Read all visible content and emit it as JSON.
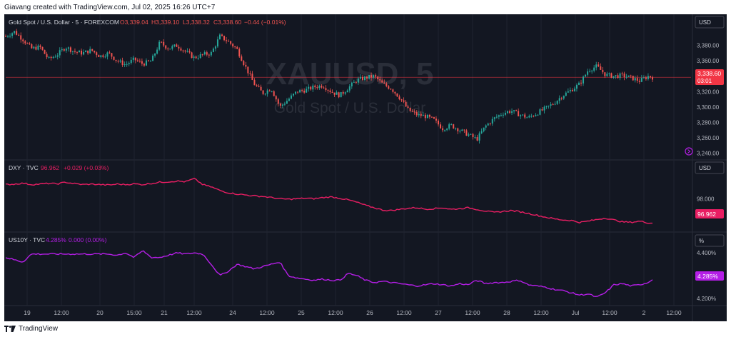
{
  "header": {
    "caption": "Giavang created with TradingView.com, Jul 02, 2025 16:26 UTC+7"
  },
  "footer": {
    "brand": "TradingView"
  },
  "colors": {
    "background": "#131722",
    "grid": "#1f2330",
    "text": "#b2b5be",
    "gold_up": "#26a69a",
    "gold_down": "#ef5350",
    "dxy": "#e91e63",
    "us10y": "#b41ee6",
    "price_badge": "#f23645"
  },
  "chart_data": [
    {
      "type": "candlestick",
      "legend": {
        "symbol": "Gold Spot / U.S. Dollar · 5 · FOREXCOM",
        "o": "O3,339.04",
        "h": "H3,339.10",
        "l": "L3,338.32",
        "c": "C3,338.60",
        "chg": "−0.44 (−0.01%)"
      },
      "watermark": {
        "ticker": "XAUUSD, 5",
        "name": "Gold Spot / U.S. Dollar"
      },
      "currency_button": "USD",
      "y_ticks": [
        "3,380.00",
        "3,360.00",
        "3,340.00",
        "3,320.00",
        "3,300.00",
        "3,280.00",
        "3,260.00",
        "3,240.00"
      ],
      "y_tick_values": [
        3380,
        3360,
        3340,
        3320,
        3300,
        3280,
        3260,
        3240
      ],
      "ylim": [
        3233,
        3402
      ],
      "last_price": "3,338.60",
      "countdown": "03:01",
      "last_value": 3338.6,
      "series": {
        "name": "XAUUSD",
        "points": [
          [
            0,
            3392
          ],
          [
            2,
            3398
          ],
          [
            4,
            3388
          ],
          [
            6,
            3376
          ],
          [
            8,
            3378
          ],
          [
            10,
            3362
          ],
          [
            12,
            3368
          ],
          [
            14,
            3378
          ],
          [
            16,
            3372
          ],
          [
            18,
            3370
          ],
          [
            20,
            3374
          ],
          [
            22,
            3366
          ],
          [
            24,
            3370
          ],
          [
            26,
            3360
          ],
          [
            28,
            3355
          ],
          [
            30,
            3362
          ],
          [
            32,
            3356
          ],
          [
            34,
            3360
          ],
          [
            36,
            3384
          ],
          [
            38,
            3376
          ],
          [
            40,
            3380
          ],
          [
            42,
            3372
          ],
          [
            44,
            3364
          ],
          [
            46,
            3368
          ],
          [
            48,
            3370
          ],
          [
            50,
            3392
          ],
          [
            52,
            3385
          ],
          [
            54,
            3375
          ],
          [
            56,
            3352
          ],
          [
            58,
            3330
          ],
          [
            60,
            3318
          ],
          [
            62,
            3324
          ],
          [
            64,
            3300
          ],
          [
            66,
            3310
          ],
          [
            68,
            3320
          ],
          [
            70,
            3322
          ],
          [
            72,
            3326
          ],
          [
            74,
            3328
          ],
          [
            76,
            3320
          ],
          [
            78,
            3315
          ],
          [
            80,
            3325
          ],
          [
            82,
            3335
          ],
          [
            84,
            3338
          ],
          [
            86,
            3340
          ],
          [
            88,
            3330
          ],
          [
            90,
            3324
          ],
          [
            92,
            3312
          ],
          [
            94,
            3296
          ],
          [
            96,
            3290
          ],
          [
            98,
            3288
          ],
          [
            100,
            3283
          ],
          [
            102,
            3272
          ],
          [
            104,
            3276
          ],
          [
            106,
            3270
          ],
          [
            108,
            3264
          ],
          [
            110,
            3258
          ],
          [
            112,
            3275
          ],
          [
            114,
            3285
          ],
          [
            116,
            3292
          ],
          [
            118,
            3295
          ],
          [
            120,
            3290
          ],
          [
            122,
            3286
          ],
          [
            124,
            3292
          ],
          [
            126,
            3298
          ],
          [
            128,
            3305
          ],
          [
            130,
            3315
          ],
          [
            132,
            3322
          ],
          [
            134,
            3330
          ],
          [
            136,
            3348
          ],
          [
            138,
            3353
          ],
          [
            140,
            3342
          ],
          [
            142,
            3340
          ],
          [
            144,
            3341
          ],
          [
            146,
            3338
          ],
          [
            148,
            3334
          ],
          [
            150,
            3340
          ],
          [
            151,
            3338.6
          ]
        ]
      }
    },
    {
      "type": "line",
      "legend": {
        "symbol": "DXY · TVC",
        "value": "96.962",
        "chg": "+0.029 (+0.03%)"
      },
      "currency_button": "USD",
      "y_ticks": [
        "98.000"
      ],
      "y_tick_values": [
        98.0
      ],
      "ylim": [
        96.8,
        99.1
      ],
      "last_value_label": "96.962",
      "last_value": 96.962,
      "series": {
        "name": "DXY",
        "points": [
          [
            0,
            98.6
          ],
          [
            2,
            98.62
          ],
          [
            4,
            98.66
          ],
          [
            6,
            98.6
          ],
          [
            8,
            98.62
          ],
          [
            10,
            98.65
          ],
          [
            12,
            98.63
          ],
          [
            14,
            98.7
          ],
          [
            16,
            98.64
          ],
          [
            18,
            98.6
          ],
          [
            20,
            98.62
          ],
          [
            22,
            98.6
          ],
          [
            24,
            98.58
          ],
          [
            26,
            98.62
          ],
          [
            28,
            98.6
          ],
          [
            30,
            98.63
          ],
          [
            32,
            98.6
          ],
          [
            34,
            98.65
          ],
          [
            36,
            98.7
          ],
          [
            38,
            98.72
          ],
          [
            40,
            98.75
          ],
          [
            42,
            98.72
          ],
          [
            44,
            98.85
          ],
          [
            46,
            98.6
          ],
          [
            48,
            98.5
          ],
          [
            50,
            98.35
          ],
          [
            52,
            98.25
          ],
          [
            54,
            98.2
          ],
          [
            56,
            98.16
          ],
          [
            58,
            98.12
          ],
          [
            60,
            98.1
          ],
          [
            62,
            98.05
          ],
          [
            64,
            98.0
          ],
          [
            66,
            97.98
          ],
          [
            68,
            98.0
          ],
          [
            70,
            98.02
          ],
          [
            72,
            98.0
          ],
          [
            74,
            98.05
          ],
          [
            76,
            98.08
          ],
          [
            78,
            98.02
          ],
          [
            80,
            97.95
          ],
          [
            82,
            97.85
          ],
          [
            84,
            97.72
          ],
          [
            86,
            97.62
          ],
          [
            88,
            97.52
          ],
          [
            90,
            97.5
          ],
          [
            92,
            97.55
          ],
          [
            94,
            97.6
          ],
          [
            96,
            97.62
          ],
          [
            98,
            97.56
          ],
          [
            100,
            97.58
          ],
          [
            102,
            97.62
          ],
          [
            104,
            97.55
          ],
          [
            106,
            97.58
          ],
          [
            108,
            97.62
          ],
          [
            110,
            97.55
          ],
          [
            112,
            97.48
          ],
          [
            114,
            97.42
          ],
          [
            116,
            97.46
          ],
          [
            118,
            97.5
          ],
          [
            120,
            97.45
          ],
          [
            122,
            97.38
          ],
          [
            124,
            97.3
          ],
          [
            126,
            97.22
          ],
          [
            128,
            97.15
          ],
          [
            130,
            97.1
          ],
          [
            132,
            97.08
          ],
          [
            134,
            97.0
          ],
          [
            136,
            97.05
          ],
          [
            138,
            97.12
          ],
          [
            140,
            97.18
          ],
          [
            142,
            97.1
          ],
          [
            144,
            97.02
          ],
          [
            146,
            97.0
          ],
          [
            148,
            97.05
          ],
          [
            150,
            96.98
          ],
          [
            151,
            96.962
          ]
        ]
      }
    },
    {
      "type": "line",
      "legend": {
        "symbol": "US10Y · TVC",
        "value": "4.285%",
        "chg": "0.000 (0.00%)"
      },
      "currency_button": "%",
      "y_ticks": [
        "4.400%",
        "4.200%"
      ],
      "y_tick_values": [
        4.4,
        4.2
      ],
      "ylim": [
        4.175,
        4.432
      ],
      "last_value_label": "4.285%",
      "last_value": 4.285,
      "series": {
        "name": "US10Y",
        "points": [
          [
            0,
            4.38
          ],
          [
            2,
            4.37
          ],
          [
            4,
            4.36
          ],
          [
            6,
            4.395
          ],
          [
            8,
            4.395
          ],
          [
            10,
            4.395
          ],
          [
            12,
            4.395
          ],
          [
            14,
            4.395
          ],
          [
            16,
            4.395
          ],
          [
            18,
            4.395
          ],
          [
            20,
            4.395
          ],
          [
            22,
            4.395
          ],
          [
            24,
            4.395
          ],
          [
            26,
            4.39
          ],
          [
            28,
            4.4
          ],
          [
            30,
            4.38
          ],
          [
            32,
            4.41
          ],
          [
            34,
            4.38
          ],
          [
            36,
            4.38
          ],
          [
            38,
            4.39
          ],
          [
            40,
            4.4
          ],
          [
            42,
            4.395
          ],
          [
            44,
            4.4
          ],
          [
            46,
            4.395
          ],
          [
            48,
            4.35
          ],
          [
            50,
            4.3
          ],
          [
            52,
            4.32
          ],
          [
            54,
            4.35
          ],
          [
            56,
            4.34
          ],
          [
            58,
            4.33
          ],
          [
            60,
            4.34
          ],
          [
            62,
            4.35
          ],
          [
            64,
            4.36
          ],
          [
            66,
            4.3
          ],
          [
            68,
            4.29
          ],
          [
            70,
            4.285
          ],
          [
            72,
            4.28
          ],
          [
            74,
            4.285
          ],
          [
            76,
            4.28
          ],
          [
            78,
            4.28
          ],
          [
            80,
            4.31
          ],
          [
            82,
            4.3
          ],
          [
            84,
            4.28
          ],
          [
            86,
            4.27
          ],
          [
            88,
            4.275
          ],
          [
            90,
            4.27
          ],
          [
            92,
            4.265
          ],
          [
            94,
            4.26
          ],
          [
            96,
            4.255
          ],
          [
            98,
            4.26
          ],
          [
            100,
            4.265
          ],
          [
            102,
            4.26
          ],
          [
            104,
            4.255
          ],
          [
            106,
            4.265
          ],
          [
            108,
            4.26
          ],
          [
            110,
            4.28
          ],
          [
            112,
            4.265
          ],
          [
            114,
            4.27
          ],
          [
            116,
            4.27
          ],
          [
            118,
            4.275
          ],
          [
            120,
            4.28
          ],
          [
            122,
            4.26
          ],
          [
            124,
            4.255
          ],
          [
            126,
            4.25
          ],
          [
            128,
            4.24
          ],
          [
            130,
            4.235
          ],
          [
            132,
            4.225
          ],
          [
            134,
            4.215
          ],
          [
            136,
            4.22
          ],
          [
            138,
            4.205
          ],
          [
            140,
            4.225
          ],
          [
            142,
            4.26
          ],
          [
            144,
            4.265
          ],
          [
            146,
            4.255
          ],
          [
            148,
            4.26
          ],
          [
            150,
            4.27
          ],
          [
            151,
            4.285
          ]
        ]
      }
    }
  ],
  "x_axis": {
    "labels": [
      "19",
      "12:00",
      "20",
      "15:00",
      "21",
      "12:00",
      "24",
      "12:00",
      "25",
      "12:00",
      "26",
      "12:00",
      "27",
      "12:00",
      "28",
      "12:00",
      "Jul",
      "12:00",
      "2",
      "12:00"
    ],
    "label_index": [
      5,
      13,
      22,
      30,
      37,
      44,
      53,
      61,
      69,
      77,
      85,
      93,
      101,
      109,
      117,
      125,
      133,
      141,
      149,
      156
    ]
  }
}
